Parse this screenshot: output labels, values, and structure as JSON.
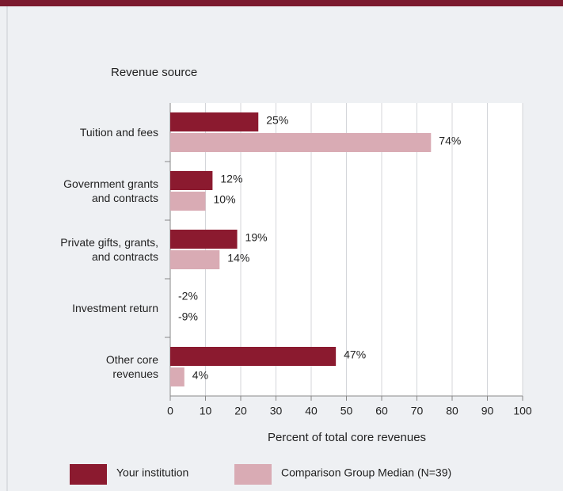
{
  "chart_data": {
    "type": "hbar",
    "title": "Revenue source",
    "xlabel": "Percent of total core revenues",
    "categories": [
      "Tuition and fees",
      "Government grants\nand contracts",
      "Private gifts, grants,\nand contracts",
      "Investment return",
      "Other core\nrevenues"
    ],
    "series": [
      {
        "name": "Your institution",
        "color": "#8b1a2f",
        "values": [
          25,
          12,
          19,
          -2,
          47
        ],
        "value_labels": [
          "25%",
          "12%",
          "19%",
          "-2%",
          "47%"
        ]
      },
      {
        "name": "Comparison Group Median (N=39)",
        "color": "#d9abb4",
        "values": [
          74,
          10,
          14,
          -9,
          4
        ],
        "value_labels": [
          "74%",
          "10%",
          "14%",
          "-9%",
          "4%"
        ]
      }
    ],
    "xlim": [
      0,
      100
    ],
    "xticks": [
      0,
      10,
      20,
      30,
      40,
      50,
      60,
      70,
      80,
      90,
      100
    ],
    "grid": true
  }
}
